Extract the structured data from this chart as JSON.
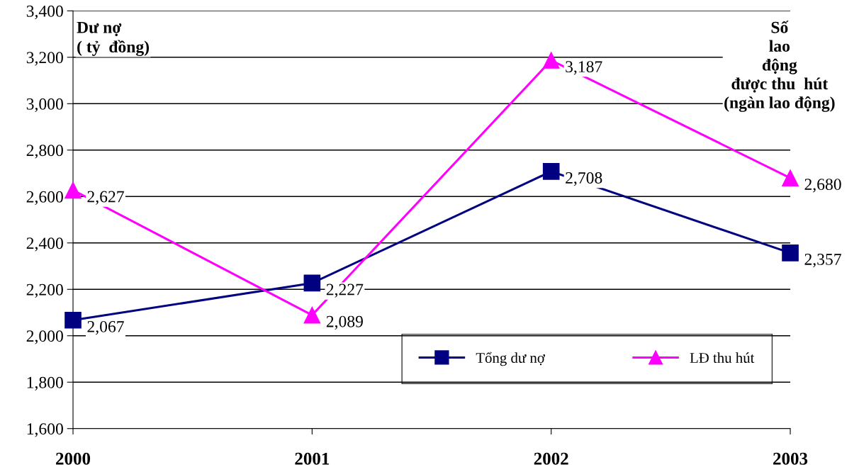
{
  "chart_data": {
    "type": "line",
    "categories": [
      "2000",
      "2001",
      "2002",
      "2003"
    ],
    "series": [
      {
        "name": "Tổng dư nợ",
        "color": "#000080",
        "marker": "square",
        "values": [
          2067,
          2227,
          2708,
          2357
        ],
        "value_labels": [
          "2,067",
          "2,227",
          "2,708",
          "2,357"
        ]
      },
      {
        "name": "LĐ thu hút",
        "color": "#ff00ff",
        "marker": "triangle",
        "values": [
          2627,
          2089,
          3187,
          2680
        ],
        "value_labels": [
          "2,627",
          "2,089",
          "3,187",
          "2,680"
        ]
      }
    ],
    "ylim": [
      1600,
      3400
    ],
    "yticks": [
      {
        "value": 1600,
        "label": "1,600"
      },
      {
        "value": 1800,
        "label": "1,800"
      },
      {
        "value": 2000,
        "label": "2,000"
      },
      {
        "value": 2200,
        "label": "2,200"
      },
      {
        "value": 2400,
        "label": "2,400"
      },
      {
        "value": 2600,
        "label": "2,600"
      },
      {
        "value": 2800,
        "label": "2,800"
      },
      {
        "value": 3000,
        "label": "3,000"
      },
      {
        "value": 3200,
        "label": "3,200"
      },
      {
        "value": 3400,
        "label": "3,400"
      }
    ],
    "grid": "y",
    "legend": "bottom right",
    "line_style": "solid",
    "annotations": [
      "Dư nợ\n( tỷ  đồng)",
      "Số\nlao\nđộng\nđược thu  hút\n(ngàn lao động)"
    ]
  }
}
